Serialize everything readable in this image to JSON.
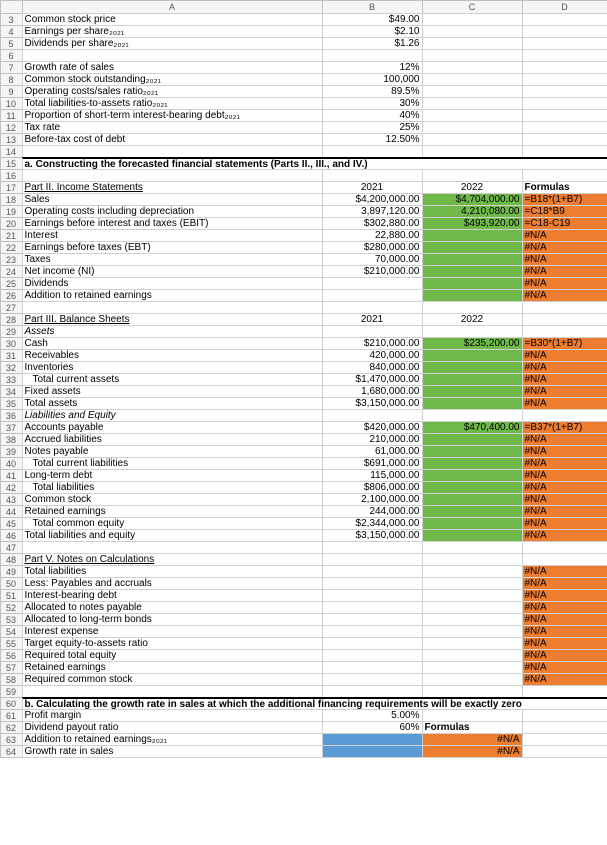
{
  "cols": [
    "",
    "A",
    "B",
    "C",
    "D"
  ],
  "rows": [
    {
      "n": 3,
      "a": "Common stock price",
      "b": "$49.00"
    },
    {
      "n": 4,
      "a": "Earnings per share₂₀₂₁",
      "b": "$2.10"
    },
    {
      "n": 5,
      "a": "Dividends per share₂₀₂₁",
      "b": "$1.26"
    },
    {
      "n": 6
    },
    {
      "n": 7,
      "a": "Growth rate of sales",
      "b": "12%"
    },
    {
      "n": 8,
      "a": "Common stock outstanding₂₀₂₁",
      "b": "100,000"
    },
    {
      "n": 9,
      "a": "Operating costs/sales ratio₂₀₂₁",
      "b": "89.5%"
    },
    {
      "n": 10,
      "a": "Total liabilities-to-assets ratio₂₀₂₁",
      "b": "30%"
    },
    {
      "n": 11,
      "a": "Proportion of short-term interest-bearing debt₂₀₂₁",
      "b": "40%"
    },
    {
      "n": 12,
      "a": "Tax rate",
      "b": "25%"
    },
    {
      "n": 13,
      "a": "Before-tax cost of debt",
      "b": "12.50%"
    },
    {
      "n": 14
    },
    {
      "n": 15,
      "a": "a.  Constructing the forecasted financial statements (Parts II., III., and IV.)",
      "bold": true,
      "section": true,
      "span": true
    },
    {
      "n": 16
    },
    {
      "n": 17,
      "a": "Part II. Income Statements",
      "ul": true,
      "b": "2021",
      "bc": true,
      "c": "2022",
      "cc": true,
      "d": "Formulas",
      "dbold": true
    },
    {
      "n": 18,
      "a": "Sales",
      "b": "$4,200,000.00",
      "c": "$4,704,000.00",
      "cbg": "green",
      "d": "=B18*(1+B7)",
      "dbg": "orange"
    },
    {
      "n": 19,
      "a": "Operating costs including depreciation",
      "b": "3,897,120.00",
      "c": "4,210,080.00",
      "cbg": "green",
      "d": "=C18*B9",
      "dbg": "orange"
    },
    {
      "n": 20,
      "a": "Earnings before interest and taxes (EBIT)",
      "b": "$302,880.00",
      "c": "$493,920.00",
      "cbg": "green",
      "d": "=C18-C19",
      "dbg": "orange"
    },
    {
      "n": 21,
      "a": "Interest",
      "b": "22,880.00",
      "cbg": "green",
      "d": "#N/A",
      "dbg": "orange"
    },
    {
      "n": 22,
      "a": "Earnings before taxes (EBT)",
      "b": "$280,000.00",
      "cbg": "green",
      "d": "#N/A",
      "dbg": "orange"
    },
    {
      "n": 23,
      "a": "Taxes",
      "b": "70,000.00",
      "cbg": "green",
      "d": "#N/A",
      "dbg": "orange"
    },
    {
      "n": 24,
      "a": "Net income (NI)",
      "b": "$210,000.00",
      "cbg": "green",
      "d": "#N/A",
      "dbg": "orange"
    },
    {
      "n": 25,
      "a": "Dividends",
      "cbg": "green",
      "d": "#N/A",
      "dbg": "orange"
    },
    {
      "n": 26,
      "a": "Addition to retained earnings",
      "cbg": "green",
      "d": "#N/A",
      "dbg": "orange"
    },
    {
      "n": 27
    },
    {
      "n": 28,
      "a": "Part III. Balance Sheets",
      "ul": true,
      "b": "2021",
      "bc": true,
      "c": "2022",
      "cc": true
    },
    {
      "n": 29,
      "a": "Assets",
      "it": true
    },
    {
      "n": 30,
      "a": "Cash",
      "b": "$210,000.00",
      "c": "$235,200.00",
      "cbg": "green",
      "d": "=B30*(1+B7)",
      "dbg": "orange"
    },
    {
      "n": 31,
      "a": "Receivables",
      "b": "420,000.00",
      "cbg": "green",
      "d": "#N/A",
      "dbg": "orange"
    },
    {
      "n": 32,
      "a": "Inventories",
      "b": "840,000.00",
      "cbg": "green",
      "d": "#N/A",
      "dbg": "orange"
    },
    {
      "n": 33,
      "a": "  Total current assets",
      "b": "$1,470,000.00",
      "cbg": "green",
      "d": "#N/A",
      "dbg": "orange",
      "ind": true
    },
    {
      "n": 34,
      "a": "Fixed assets",
      "b": "1,680,000.00",
      "cbg": "green",
      "d": "#N/A",
      "dbg": "orange"
    },
    {
      "n": 35,
      "a": "Total assets",
      "b": "$3,150,000.00",
      "cbg": "green",
      "d": "#N/A",
      "dbg": "orange"
    },
    {
      "n": 36,
      "a": "Liabilities and Equity",
      "it": true
    },
    {
      "n": 37,
      "a": "Accounts payable",
      "b": "$420,000.00",
      "c": "$470,400.00",
      "cbg": "green",
      "d": "=B37*(1+B7)",
      "dbg": "orange"
    },
    {
      "n": 38,
      "a": "Accrued liabilities",
      "b": "210,000.00",
      "cbg": "green",
      "d": "#N/A",
      "dbg": "orange"
    },
    {
      "n": 39,
      "a": "Notes payable",
      "b": "61,000.00",
      "cbg": "green",
      "d": "#N/A",
      "dbg": "orange"
    },
    {
      "n": 40,
      "a": "  Total current liabilities",
      "b": "$691,000.00",
      "cbg": "green",
      "d": "#N/A",
      "dbg": "orange",
      "ind": true
    },
    {
      "n": 41,
      "a": "Long-term debt",
      "b": "115,000.00",
      "cbg": "green",
      "d": "#N/A",
      "dbg": "orange"
    },
    {
      "n": 42,
      "a": "  Total liabilities",
      "b": "$806,000.00",
      "cbg": "green",
      "d": "#N/A",
      "dbg": "orange",
      "ind": true
    },
    {
      "n": 43,
      "a": "Common stock",
      "b": "2,100,000.00",
      "cbg": "green",
      "d": "#N/A",
      "dbg": "orange"
    },
    {
      "n": 44,
      "a": "Retained earnings",
      "b": "244,000.00",
      "cbg": "green",
      "d": "#N/A",
      "dbg": "orange"
    },
    {
      "n": 45,
      "a": "  Total common equity",
      "b": "$2,344,000.00",
      "cbg": "green",
      "d": "#N/A",
      "dbg": "orange",
      "ind": true
    },
    {
      "n": 46,
      "a": "Total liabilities and equity",
      "b": "$3,150,000.00",
      "cbg": "green",
      "d": "#N/A",
      "dbg": "orange"
    },
    {
      "n": 47
    },
    {
      "n": 48,
      "a": "Part V. Notes on Calculations",
      "ul": true
    },
    {
      "n": 49,
      "a": "Total liabilities",
      "d": "#N/A",
      "dbg": "orange"
    },
    {
      "n": 50,
      "a": "Less: Payables and accruals",
      "d": "#N/A",
      "dbg": "orange"
    },
    {
      "n": 51,
      "a": "Interest-bearing debt",
      "d": "#N/A",
      "dbg": "orange"
    },
    {
      "n": 52,
      "a": "Allocated to notes payable",
      "d": "#N/A",
      "dbg": "orange"
    },
    {
      "n": 53,
      "a": "Allocated to long-term bonds",
      "d": "#N/A",
      "dbg": "orange"
    },
    {
      "n": 54,
      "a": "Interest expense",
      "d": "#N/A",
      "dbg": "orange"
    },
    {
      "n": 55,
      "a": "Target equity-to-assets ratio",
      "d": "#N/A",
      "dbg": "orange"
    },
    {
      "n": 56,
      "a": "Required total equity",
      "d": "#N/A",
      "dbg": "orange"
    },
    {
      "n": 57,
      "a": "Retained earnings",
      "d": "#N/A",
      "dbg": "orange"
    },
    {
      "n": 58,
      "a": "Required common stock",
      "d": "#N/A",
      "dbg": "orange"
    },
    {
      "n": 59
    },
    {
      "n": 60,
      "a": "b.  Calculating the growth rate in sales at which the additional financing requirements will be exactly zero",
      "bold": true,
      "section": true,
      "span": true
    },
    {
      "n": 61,
      "a": "Profit margin",
      "b": "5.00%"
    },
    {
      "n": 62,
      "a": "Dividend payout ratio",
      "b": "60%",
      "c": "Formulas",
      "cbold": true
    },
    {
      "n": 63,
      "a": "Addition to retained earnings₂₀₂₁",
      "bbg": "blue",
      "c": "#N/A",
      "cbg": "orange"
    },
    {
      "n": 64,
      "a": "Growth rate in sales",
      "bbg": "blue",
      "c": "#N/A",
      "cbg": "orange"
    }
  ],
  "colors": {
    "green": "#6fb94a",
    "orange": "#ed7d31",
    "blue": "#5b9bd5"
  }
}
